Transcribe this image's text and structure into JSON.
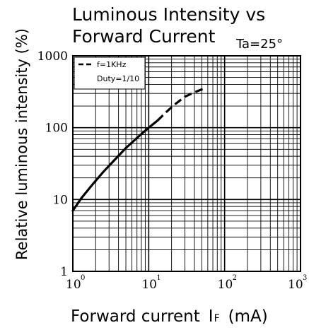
{
  "chart_data": {
    "type": "line",
    "title_line1": "Luminous Intensity vs",
    "title_line2": "Forward Current",
    "condition": "Ta=25°",
    "xlabel": "Forward current",
    "xlabel_symbol": "I",
    "xlabel_sub": "F",
    "xlabel_unit": "(mA)",
    "ylabel": "Relative luminous intensity (%)",
    "x_scale": "log",
    "y_scale": "log",
    "xlim": [
      1,
      1000
    ],
    "ylim": [
      1,
      1000
    ],
    "grid": true,
    "legend_position": "top-left",
    "legend_lines": [
      "f=1KHz",
      "Duty=1/10"
    ],
    "x_ticks": [
      {
        "base": "10",
        "exp": "0"
      },
      {
        "base": "10",
        "exp": "1"
      },
      {
        "base": "10",
        "exp": "2"
      },
      {
        "base": "10",
        "exp": "3"
      }
    ],
    "y_ticks": [
      "1",
      "10",
      "100",
      "1000"
    ],
    "series": [
      {
        "style": "solid",
        "x": [
          1.0,
          1.3,
          1.8,
          2.5,
          3.5,
          5.0,
          7.0,
          10.0,
          13.0
        ],
        "y": [
          7,
          10.5,
          16,
          24,
          35,
          52,
          72,
          100,
          125
        ]
      },
      {
        "style": "dashed",
        "legend_index": 0,
        "x": [
          13.0,
          17.0,
          22.0,
          30.0,
          40.0,
          55.0
        ],
        "y": [
          125,
          165,
          210,
          270,
          310,
          355
        ]
      }
    ]
  }
}
